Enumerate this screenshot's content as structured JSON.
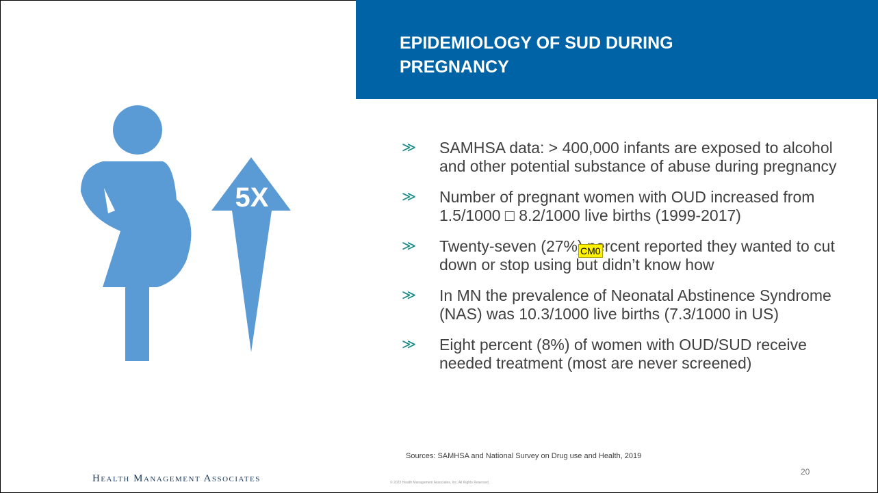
{
  "header": {
    "title": "EPIDEMIOLOGY OF SUD DURING PREGNANCY"
  },
  "graphic": {
    "label": "5X"
  },
  "bullets": [
    "SAMHSA data: > 400,000 infants are exposed to alcohol and other potential substance of abuse during pregnancy",
    "Number of pregnant women with OUD increased from 1.5/1000 □ 8.2/1000 live births (1999-2017)",
    "Twenty-seven (27%) percent reported they wanted to cut down or stop using but didn’t know how",
    "In MN the prevalence of Neonatal Abstinence Syndrome (NAS) was 10.3/1000 live births (7.3/1000 in US)",
    "Eight percent (8%) of women with OUD/SUD receive needed treatment (most are never screened)"
  ],
  "comment_tag": "CM0",
  "sources": "Sources: SAMHSA and National Survey on Drug use and Health, 2019",
  "footer": {
    "logo": "Health Management Associates",
    "copyright": "© 2023 Health Management Associates, Inc. All Rights Reserved.",
    "page_number": "20"
  }
}
